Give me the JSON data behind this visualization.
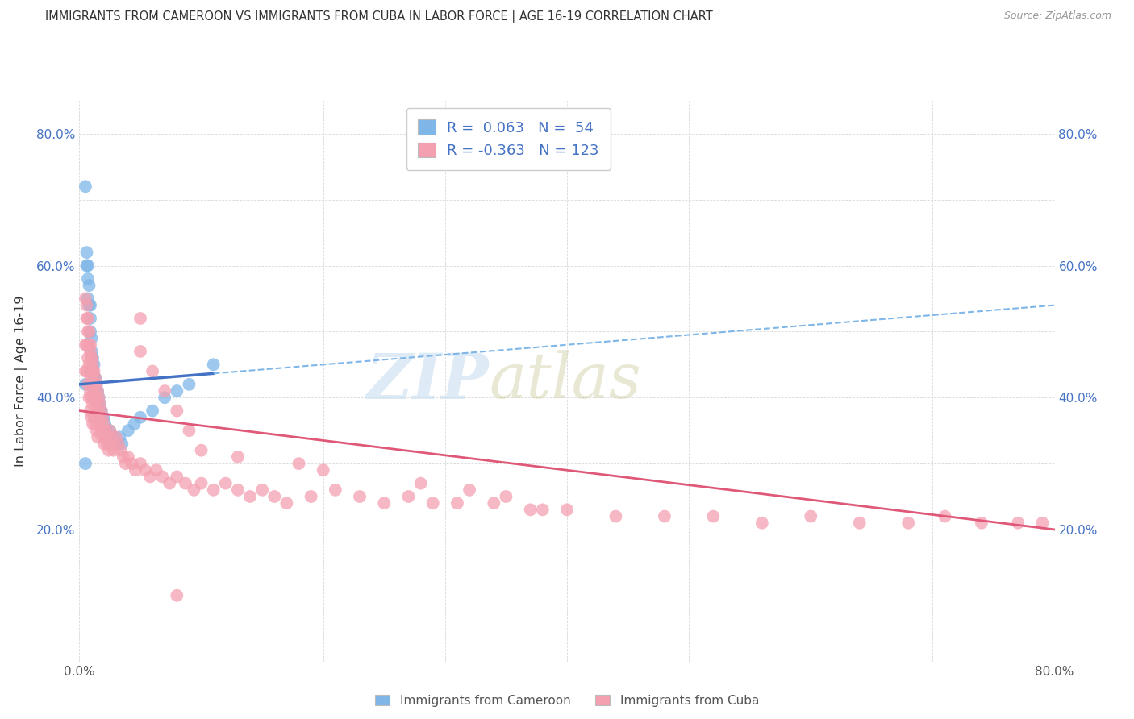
{
  "title": "IMMIGRANTS FROM CAMEROON VS IMMIGRANTS FROM CUBA IN LABOR FORCE | AGE 16-19 CORRELATION CHART",
  "source": "Source: ZipAtlas.com",
  "ylabel": "In Labor Force | Age 16-19",
  "xlim": [
    0.0,
    0.8
  ],
  "ylim": [
    0.0,
    0.85
  ],
  "x_ticks": [
    0.0,
    0.1,
    0.2,
    0.3,
    0.4,
    0.5,
    0.6,
    0.7,
    0.8
  ],
  "y_ticks": [
    0.0,
    0.1,
    0.2,
    0.3,
    0.4,
    0.5,
    0.6,
    0.7,
    0.8
  ],
  "cameroon_color": "#7eb6e8",
  "cuba_color": "#f4a0b0",
  "cameroon_line_color": "#4472c4",
  "cuba_line_color": "#e05878",
  "cameroon_R": 0.063,
  "cameroon_N": 54,
  "cuba_R": -0.363,
  "cuba_N": 123,
  "background_color": "#ffffff",
  "grid_color": "#d8d8d8",
  "cameroon_scatter_x": [
    0.005,
    0.005,
    0.006,
    0.006,
    0.007,
    0.007,
    0.007,
    0.008,
    0.008,
    0.009,
    0.009,
    0.009,
    0.01,
    0.01,
    0.01,
    0.01,
    0.011,
    0.011,
    0.011,
    0.012,
    0.012,
    0.012,
    0.013,
    0.013,
    0.014,
    0.014,
    0.015,
    0.015,
    0.016,
    0.016,
    0.017,
    0.017,
    0.018,
    0.019,
    0.02,
    0.02,
    0.021,
    0.022,
    0.023,
    0.025,
    0.025,
    0.028,
    0.03,
    0.033,
    0.035,
    0.04,
    0.045,
    0.05,
    0.06,
    0.07,
    0.08,
    0.09,
    0.11,
    0.005
  ],
  "cameroon_scatter_y": [
    0.72,
    0.42,
    0.62,
    0.6,
    0.6,
    0.58,
    0.55,
    0.57,
    0.54,
    0.54,
    0.52,
    0.5,
    0.49,
    0.47,
    0.46,
    0.44,
    0.46,
    0.44,
    0.42,
    0.45,
    0.43,
    0.41,
    0.43,
    0.41,
    0.42,
    0.4,
    0.41,
    0.39,
    0.4,
    0.38,
    0.39,
    0.37,
    0.38,
    0.37,
    0.37,
    0.35,
    0.36,
    0.35,
    0.34,
    0.35,
    0.33,
    0.34,
    0.33,
    0.34,
    0.33,
    0.35,
    0.36,
    0.37,
    0.38,
    0.4,
    0.41,
    0.42,
    0.45,
    0.3
  ],
  "cuba_scatter_x": [
    0.005,
    0.005,
    0.005,
    0.006,
    0.006,
    0.006,
    0.007,
    0.007,
    0.007,
    0.008,
    0.008,
    0.008,
    0.009,
    0.009,
    0.009,
    0.009,
    0.01,
    0.01,
    0.01,
    0.01,
    0.011,
    0.011,
    0.011,
    0.011,
    0.012,
    0.012,
    0.012,
    0.013,
    0.013,
    0.013,
    0.014,
    0.014,
    0.014,
    0.015,
    0.015,
    0.015,
    0.016,
    0.016,
    0.017,
    0.017,
    0.018,
    0.018,
    0.019,
    0.019,
    0.02,
    0.02,
    0.021,
    0.022,
    0.023,
    0.024,
    0.025,
    0.026,
    0.027,
    0.028,
    0.03,
    0.032,
    0.034,
    0.036,
    0.038,
    0.04,
    0.043,
    0.046,
    0.05,
    0.054,
    0.058,
    0.063,
    0.068,
    0.074,
    0.08,
    0.087,
    0.094,
    0.1,
    0.11,
    0.12,
    0.13,
    0.14,
    0.15,
    0.16,
    0.17,
    0.19,
    0.21,
    0.23,
    0.25,
    0.27,
    0.29,
    0.31,
    0.34,
    0.37,
    0.4,
    0.44,
    0.48,
    0.52,
    0.56,
    0.6,
    0.64,
    0.68,
    0.71,
    0.74,
    0.77,
    0.79,
    0.006,
    0.007,
    0.008,
    0.009,
    0.01,
    0.011,
    0.012,
    0.013,
    0.05,
    0.06,
    0.07,
    0.08,
    0.09,
    0.1,
    0.13,
    0.18,
    0.2,
    0.28,
    0.32,
    0.35,
    0.38,
    0.05,
    0.08
  ],
  "cuba_scatter_y": [
    0.55,
    0.48,
    0.44,
    0.52,
    0.48,
    0.44,
    0.5,
    0.46,
    0.42,
    0.48,
    0.45,
    0.4,
    0.47,
    0.44,
    0.41,
    0.38,
    0.46,
    0.43,
    0.4,
    0.37,
    0.45,
    0.42,
    0.39,
    0.36,
    0.44,
    0.41,
    0.37,
    0.43,
    0.4,
    0.36,
    0.42,
    0.39,
    0.35,
    0.41,
    0.38,
    0.34,
    0.4,
    0.37,
    0.39,
    0.36,
    0.38,
    0.35,
    0.37,
    0.34,
    0.36,
    0.33,
    0.35,
    0.34,
    0.33,
    0.32,
    0.35,
    0.34,
    0.33,
    0.32,
    0.34,
    0.33,
    0.32,
    0.31,
    0.3,
    0.31,
    0.3,
    0.29,
    0.3,
    0.29,
    0.28,
    0.29,
    0.28,
    0.27,
    0.28,
    0.27,
    0.26,
    0.27,
    0.26,
    0.27,
    0.26,
    0.25,
    0.26,
    0.25,
    0.24,
    0.25,
    0.26,
    0.25,
    0.24,
    0.25,
    0.24,
    0.24,
    0.24,
    0.23,
    0.23,
    0.22,
    0.22,
    0.22,
    0.21,
    0.22,
    0.21,
    0.21,
    0.22,
    0.21,
    0.21,
    0.21,
    0.54,
    0.52,
    0.5,
    0.48,
    0.46,
    0.44,
    0.42,
    0.4,
    0.47,
    0.44,
    0.41,
    0.38,
    0.35,
    0.32,
    0.31,
    0.3,
    0.29,
    0.27,
    0.26,
    0.25,
    0.23,
    0.52,
    0.1
  ]
}
